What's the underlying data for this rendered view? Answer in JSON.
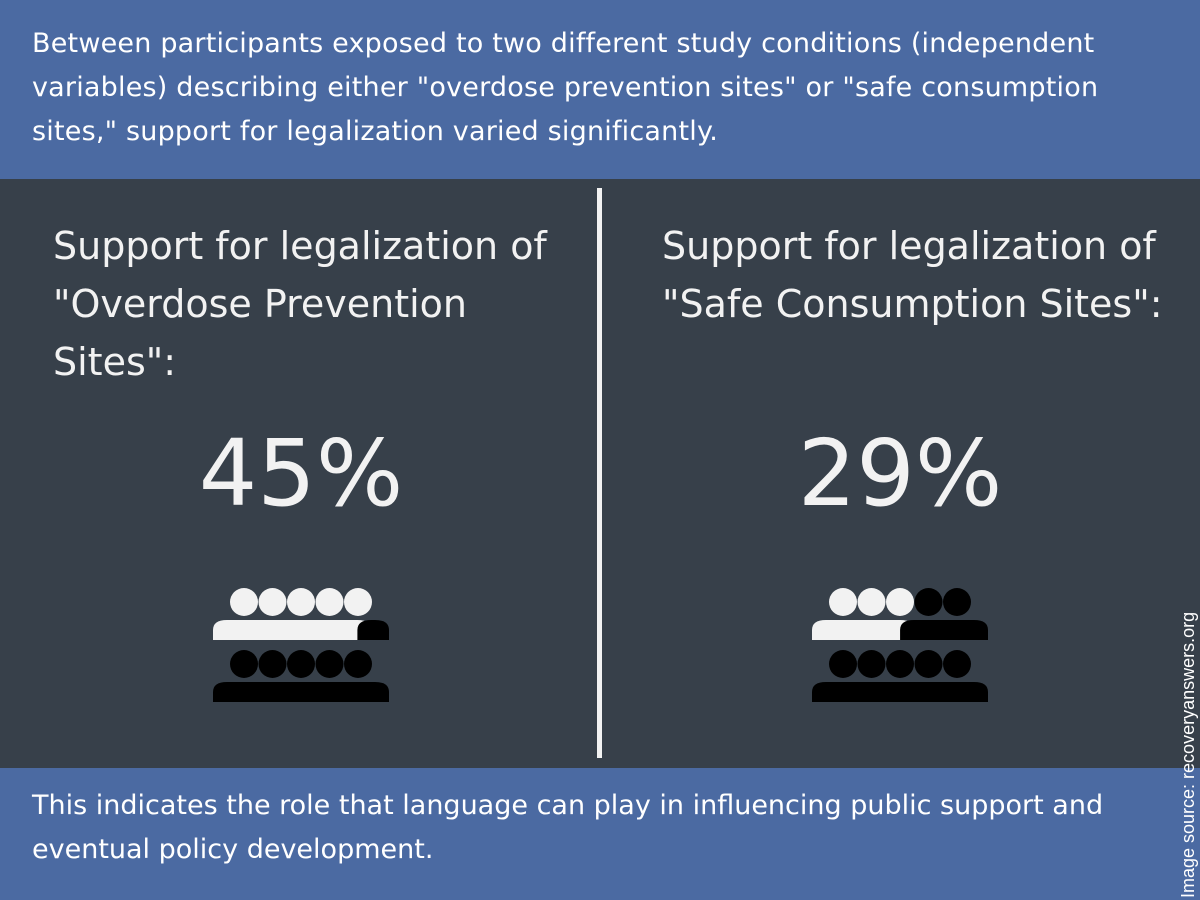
{
  "intro": "Between participants exposed to two different study conditions (independent variables) describing either \"overdose prevention sites\" or \"safe consumption sites,\" support for legalization varied significantly.",
  "panels": [
    {
      "heading": "Support for legalization of \"Overdose Prevention Sites\":",
      "percent": "45%",
      "share": 0.45
    },
    {
      "heading": "Support for legalization of \"Safe Consumption Sites\":",
      "percent": "29%",
      "share": 0.29
    }
  ],
  "icon": "people-crowd-icon",
  "colors": {
    "banner": "#4b6aa2",
    "panel": "#37404a",
    "highlight": "#f2f2f2",
    "rest": "#000000"
  },
  "conclusion": "This indicates the role that language can play in influencing public support and eventual policy development.",
  "source": "Image source: recoveryanswers.org"
}
